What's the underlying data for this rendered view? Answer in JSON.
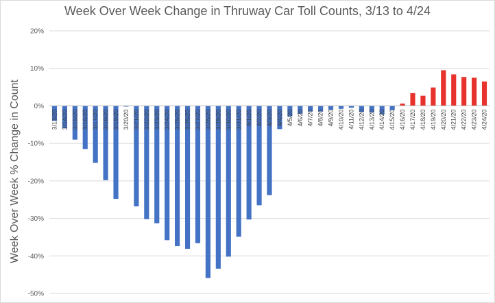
{
  "chart_data": {
    "type": "bar",
    "title": "Week Over Week Change in Thruway Car Toll Counts, 3/13 to 4/24",
    "xlabel": "",
    "ylabel": "Week Over Week % Change in Count",
    "ylim": [
      -50,
      20
    ],
    "yticks": [
      20,
      10,
      0,
      -10,
      -20,
      -30,
      -40,
      -50
    ],
    "ytick_labels": [
      "20%",
      "10%",
      "0%",
      "-10%",
      "-20%",
      "-30%",
      "-40%",
      "-50%"
    ],
    "grid": true,
    "legend": "none",
    "colors": {
      "negative": "#4472c4",
      "positive": "#e8322d",
      "grid": "#d9d9d9",
      "axis": "#bfbfbf"
    },
    "categories": [
      "3/13/20",
      "3/14/20",
      "3/15/20",
      "3/16/20",
      "3/17/20",
      "3/18/20",
      "3/19/20",
      "3/20/20",
      "3/21/20",
      "3/22/20",
      "3/23/20",
      "3/24/20",
      "3/25/20",
      "3/26/20",
      "3/27/20",
      "3/28/20",
      "3/29/20",
      "3/30/20",
      "3/31/20",
      "4/1/20",
      "4/2/20",
      "4/3/20",
      "4/4/20",
      "4/5/20",
      "4/6/20",
      "4/7/20",
      "4/8/20",
      "4/9/20",
      "4/10/20",
      "4/11/20",
      "4/12/20",
      "4/13/20",
      "4/14/20",
      "4/15/20",
      "4/16/20",
      "4/17/20",
      "4/18/20",
      "4/19/20",
      "4/20/20",
      "4/21/20",
      "4/22/20",
      "4/23/20",
      "4/24/20"
    ],
    "values": [
      -4.0,
      -6.0,
      -9.0,
      -11.5,
      -15.2,
      -19.8,
      -24.8,
      -0.2,
      -26.8,
      -30.2,
      -31.3,
      -35.8,
      -37.4,
      -38.1,
      -36.6,
      -45.9,
      -43.4,
      -40.2,
      -34.9,
      -30.3,
      -26.5,
      -23.8,
      -6.2,
      -2.8,
      -2.1,
      -1.5,
      -1.5,
      -1.0,
      -0.8,
      -0.5,
      -1.6,
      -1.8,
      -2.3,
      -1.1,
      0.6,
      3.4,
      2.7,
      4.9,
      9.5,
      8.4,
      7.7,
      7.5,
      6.5
    ]
  }
}
